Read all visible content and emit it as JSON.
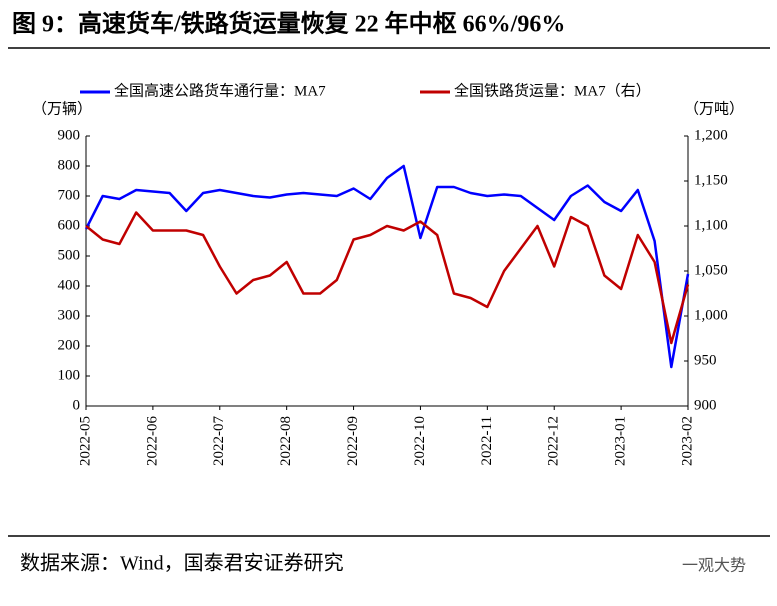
{
  "chart_data": {
    "type": "line",
    "title": "图 9：高速货车/铁路货运量恢复 22 年中枢 66%/96%",
    "y_label": "（万辆）",
    "y2_label": "（万吨）",
    "source": "数据来源：Wind，国泰君安证券研究",
    "watermark": "一观大势",
    "categories": [
      "2022-05",
      null,
      null,
      null,
      "2022-06",
      null,
      null,
      null,
      "2022-07",
      null,
      null,
      null,
      "2022-08",
      null,
      null,
      null,
      "2022-09",
      null,
      null,
      null,
      "2022-10",
      null,
      null,
      null,
      "2022-11",
      null,
      null,
      null,
      "2022-12",
      null,
      null,
      null,
      "2023-01",
      null,
      null,
      null,
      "2023-02"
    ],
    "series": [
      {
        "name": "全国高速公路货车通行量：MA7",
        "color": "#0000ff",
        "axis": "y",
        "values": [
          590,
          700,
          690,
          720,
          715,
          710,
          650,
          710,
          720,
          710,
          700,
          695,
          705,
          710,
          705,
          700,
          725,
          690,
          760,
          800,
          560,
          730,
          730,
          710,
          700,
          705,
          700,
          660,
          620,
          700,
          735,
          680,
          650,
          720,
          550,
          130,
          440
        ]
      },
      {
        "name": "全国铁路货运量：MA7（右）",
        "color": "#c00000",
        "axis": "y2",
        "values": [
          1100,
          1085,
          1080,
          1115,
          1095,
          1095,
          1095,
          1090,
          1055,
          1025,
          1040,
          1045,
          1060,
          1025,
          1025,
          1040,
          1085,
          1090,
          1100,
          1095,
          1105,
          1090,
          1025,
          1020,
          1010,
          1050,
          1075,
          1100,
          1055,
          1110,
          1100,
          1045,
          1030,
          1090,
          1060,
          970,
          1035
        ]
      }
    ],
    "ylim": [
      0,
      900
    ],
    "yticks": [
      0,
      100,
      200,
      300,
      400,
      500,
      600,
      700,
      800,
      900
    ],
    "y2lim": [
      900,
      1200
    ],
    "y2ticks": [
      900,
      950,
      {
        "value": 1000,
        "label": "1,000"
      },
      {
        "value": 1050,
        "label": "1,050"
      },
      {
        "value": 1100,
        "label": "1,100"
      },
      {
        "value": 1150,
        "label": "1,150"
      },
      {
        "value": 1200,
        "label": "1,200"
      }
    ],
    "grid": false
  }
}
